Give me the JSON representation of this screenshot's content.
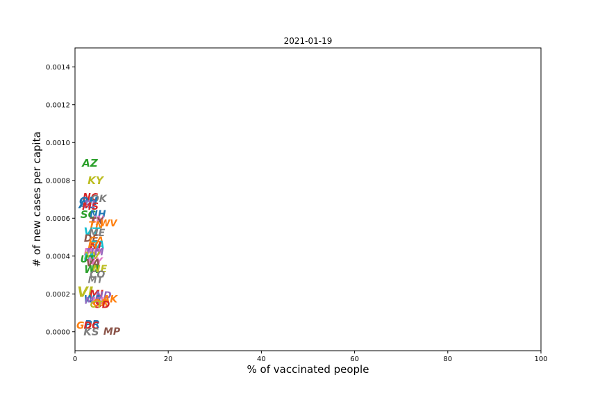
{
  "chart_data": {
    "type": "scatter",
    "title": "2021-01-19",
    "xlabel": "% of vaccinated people",
    "ylabel": "# of new cases per capita",
    "xlim": [
      0,
      100
    ],
    "ylim": [
      -0.0001,
      0.0015
    ],
    "xticks": [
      0,
      20,
      40,
      60,
      80,
      100
    ],
    "yticks": [
      0.0,
      0.0002,
      0.0004,
      0.0006,
      0.0008,
      0.001,
      0.0012,
      0.0014
    ],
    "ytick_labels": [
      "0.0000",
      "0.0002",
      "0.0004",
      "0.0006",
      "0.0008",
      "0.0010",
      "0.0012",
      "0.0014"
    ],
    "grid": false,
    "points": [
      {
        "label": "AZ",
        "x": 3.2,
        "y": 0.00089,
        "color": "#2ca02c",
        "size": 15
      },
      {
        "label": "KY",
        "x": 4.4,
        "y": 0.0008,
        "color": "#bcbd22",
        "size": 15
      },
      {
        "label": "NC",
        "x": 3.3,
        "y": 0.00071,
        "color": "#d62728",
        "size": 14
      },
      {
        "label": "OK",
        "x": 5.1,
        "y": 0.0007,
        "color": "#7f7f7f",
        "size": 14
      },
      {
        "label": "OH",
        "x": 2.9,
        "y": 0.00069,
        "color": "#1f77b4",
        "size": 16
      },
      {
        "label": "AL",
        "x": 2.6,
        "y": 0.00067,
        "color": "#1f77b4",
        "size": 17
      },
      {
        "label": "RI",
        "x": 3.1,
        "y": 0.00067,
        "color": "#9467bd",
        "size": 14
      },
      {
        "label": "MS",
        "x": 3.3,
        "y": 0.00066,
        "color": "#d62728",
        "size": 14
      },
      {
        "label": "SC",
        "x": 2.8,
        "y": 0.00062,
        "color": "#2ca02c",
        "size": 15
      },
      {
        "label": "NH",
        "x": 4.9,
        "y": 0.00062,
        "color": "#1f77b4",
        "size": 14
      },
      {
        "label": "IN",
        "x": 5.0,
        "y": 0.00059,
        "color": "#e377c2",
        "size": 14
      },
      {
        "label": "TX",
        "x": 4.6,
        "y": 0.00058,
        "color": "#8c564b",
        "size": 14
      },
      {
        "label": "WV",
        "x": 7.2,
        "y": 0.00057,
        "color": "#ff7f0e",
        "size": 13
      },
      {
        "label": "TN",
        "x": 4.5,
        "y": 0.00056,
        "color": "#ff7f0e",
        "size": 14
      },
      {
        "label": "VT",
        "x": 3.6,
        "y": 0.00053,
        "color": "#17becf",
        "size": 16
      },
      {
        "label": "ME",
        "x": 4.7,
        "y": 0.00052,
        "color": "#7f7f7f",
        "size": 14
      },
      {
        "label": "DE",
        "x": 3.5,
        "y": 0.00049,
        "color": "#8c564b",
        "size": 14
      },
      {
        "label": "CA",
        "x": 4.6,
        "y": 0.00048,
        "color": "#ff7f0e",
        "size": 14
      },
      {
        "label": "PA",
        "x": 4.8,
        "y": 0.00046,
        "color": "#17becf",
        "size": 15
      },
      {
        "label": "NJ",
        "x": 4.4,
        "y": 0.00045,
        "color": "#d62728",
        "size": 14
      },
      {
        "label": "FL",
        "x": 4.1,
        "y": 0.00045,
        "color": "#ff7f0e",
        "size": 14
      },
      {
        "label": "MO",
        "x": 3.8,
        "y": 0.00042,
        "color": "#e377c2",
        "size": 14
      },
      {
        "label": "NM",
        "x": 4.3,
        "y": 0.00042,
        "color": "#9467bd",
        "size": 14
      },
      {
        "label": "NV",
        "x": 3.6,
        "y": 0.0004,
        "color": "#bcbd22",
        "size": 14
      },
      {
        "label": "IA",
        "x": 3.1,
        "y": 0.00039,
        "color": "#17becf",
        "size": 14
      },
      {
        "label": "UT",
        "x": 2.7,
        "y": 0.00038,
        "color": "#2ca02c",
        "size": 14
      },
      {
        "label": "NY",
        "x": 4.3,
        "y": 0.00037,
        "color": "#e377c2",
        "size": 14
      },
      {
        "label": "VA",
        "x": 3.9,
        "y": 0.00036,
        "color": "#8c564b",
        "size": 14
      },
      {
        "label": "WI",
        "x": 3.6,
        "y": 0.00033,
        "color": "#2ca02c",
        "size": 15
      },
      {
        "label": "IL",
        "x": 4.5,
        "y": 0.00033,
        "color": "#2ca02c",
        "size": 14
      },
      {
        "label": "NE",
        "x": 5.3,
        "y": 0.00033,
        "color": "#bcbd22",
        "size": 14
      },
      {
        "label": "CO",
        "x": 4.8,
        "y": 0.0003,
        "color": "#7f7f7f",
        "size": 14
      },
      {
        "label": "MT",
        "x": 4.4,
        "y": 0.00027,
        "color": "#7f7f7f",
        "size": 13
      },
      {
        "label": "VI",
        "x": 2.2,
        "y": 0.00021,
        "color": "#bcbd22",
        "size": 20
      },
      {
        "label": "MI",
        "x": 4.6,
        "y": 0.0002,
        "color": "#d62728",
        "size": 15
      },
      {
        "label": "ND",
        "x": 6.1,
        "y": 0.00019,
        "color": "#9467bd",
        "size": 14
      },
      {
        "label": "AK",
        "x": 7.5,
        "y": 0.00017,
        "color": "#ff7f0e",
        "size": 14
      },
      {
        "label": "WA",
        "x": 3.8,
        "y": 0.00017,
        "color": "#1f77b4",
        "size": 14
      },
      {
        "label": "HI",
        "x": 4.9,
        "y": 0.00016,
        "color": "#e377c2",
        "size": 14
      },
      {
        "label": "MA",
        "x": 3.8,
        "y": 0.00016,
        "color": "#9467bd",
        "size": 13
      },
      {
        "label": "OR",
        "x": 5.5,
        "y": 0.00015,
        "color": "#ff7f0e",
        "size": 14
      },
      {
        "label": "SD",
        "x": 5.9,
        "y": 0.00014,
        "color": "#d62728",
        "size": 14
      },
      {
        "label": "CT",
        "x": 4.6,
        "y": 0.00014,
        "color": "#bcbd22",
        "size": 13
      },
      {
        "label": "GU",
        "x": 2.0,
        "y": 3e-05,
        "color": "#ff7f0e",
        "size": 14
      },
      {
        "label": "PR",
        "x": 3.7,
        "y": 4e-05,
        "color": "#1f77b4",
        "size": 15
      },
      {
        "label": "DC",
        "x": 3.5,
        "y": 3e-05,
        "color": "#d62728",
        "size": 14
      },
      {
        "label": "MP",
        "x": 7.9,
        "y": -0.0,
        "color": "#8c564b",
        "size": 14
      },
      {
        "label": "KS",
        "x": 3.5,
        "y": -0.0,
        "color": "#7f7f7f",
        "size": 15
      }
    ]
  }
}
